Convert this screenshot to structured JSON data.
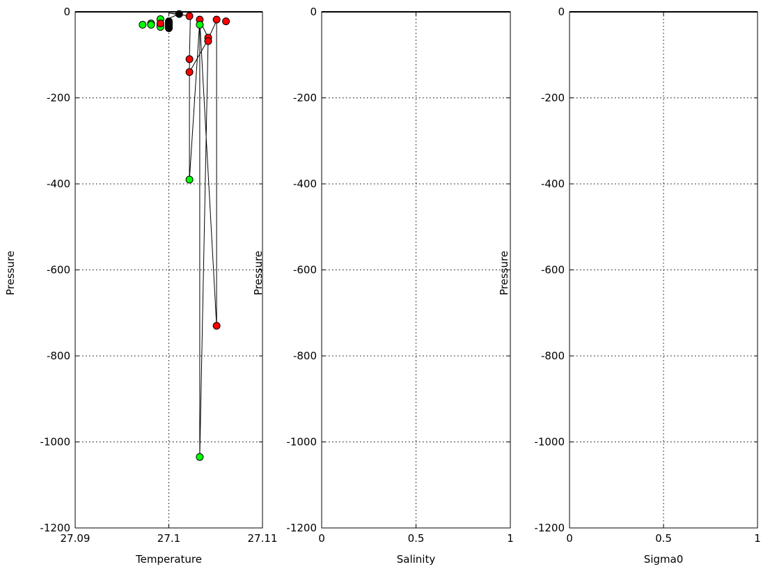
{
  "chart_data": [
    {
      "type": "scatter",
      "title": "",
      "xlabel": "Temperature",
      "ylabel": "Pressure",
      "xlim": [
        27.09,
        27.11
      ],
      "ylim": [
        -1200,
        0
      ],
      "xticks": [
        27.09,
        27.1,
        27.11
      ],
      "xtick_labels": [
        "27.09",
        "27.1",
        "27.11"
      ],
      "yticks": [
        0,
        -200,
        -400,
        -600,
        -800,
        -1000,
        -1200
      ],
      "ytick_labels": [
        "0",
        "-200",
        "-400",
        "-600",
        "-800",
        "-1000",
        "-1200"
      ],
      "grid": true,
      "colors": {
        "red": "#ff0000",
        "green": "#00ff00",
        "black": "#000000",
        "line": "#000000"
      },
      "line": [
        [
          27.1,
          -35
        ],
        [
          27.1,
          -30
        ],
        [
          27.1,
          -25
        ],
        [
          27.1,
          -20
        ],
        [
          27.1,
          -15
        ],
        [
          27.1011,
          -5
        ],
        [
          27.1,
          -3
        ],
        [
          27.1023,
          -10
        ],
        [
          27.1022,
          -110
        ],
        [
          27.1022,
          -140
        ],
        [
          27.1022,
          -390
        ],
        [
          27.1033,
          -20
        ],
        [
          27.1042,
          -60
        ],
        [
          27.1033,
          -1035
        ],
        [
          27.1033,
          -20
        ],
        [
          27.1051,
          -730
        ],
        [
          27.1051,
          -20
        ],
        [
          27.1041,
          -68
        ],
        [
          27.1022,
          -140
        ]
      ],
      "points": [
        {
          "x": 27.0972,
          "y": -30,
          "color": "green"
        },
        {
          "x": 27.0981,
          "y": -27,
          "color": "green"
        },
        {
          "x": 27.0981,
          "y": -30,
          "color": "green"
        },
        {
          "x": 27.0991,
          "y": -17,
          "color": "green"
        },
        {
          "x": 27.0991,
          "y": -30,
          "color": "green"
        },
        {
          "x": 27.0991,
          "y": -35,
          "color": "green"
        },
        {
          "x": 27.0991,
          "y": -27,
          "color": "red"
        },
        {
          "x": 27.1,
          "y": -22,
          "color": "black"
        },
        {
          "x": 27.1,
          "y": -26,
          "color": "black"
        },
        {
          "x": 27.1,
          "y": -30,
          "color": "black"
        },
        {
          "x": 27.1,
          "y": -34,
          "color": "black"
        },
        {
          "x": 27.1,
          "y": -38,
          "color": "black"
        },
        {
          "x": 27.1011,
          "y": -5,
          "color": "black"
        },
        {
          "x": 27.1022,
          "y": -10,
          "color": "red"
        },
        {
          "x": 27.1022,
          "y": -110,
          "color": "red"
        },
        {
          "x": 27.1022,
          "y": -140,
          "color": "red"
        },
        {
          "x": 27.1022,
          "y": -390,
          "color": "green"
        },
        {
          "x": 27.1033,
          "y": -18,
          "color": "red"
        },
        {
          "x": 27.1033,
          "y": -30,
          "color": "green"
        },
        {
          "x": 27.1033,
          "y": -1035,
          "color": "green"
        },
        {
          "x": 27.1042,
          "y": -60,
          "color": "red"
        },
        {
          "x": 27.1042,
          "y": -68,
          "color": "red"
        },
        {
          "x": 27.1051,
          "y": -18,
          "color": "red"
        },
        {
          "x": 27.1051,
          "y": -730,
          "color": "red"
        },
        {
          "x": 27.1061,
          "y": -22,
          "color": "red"
        }
      ]
    },
    {
      "type": "scatter",
      "title": "",
      "xlabel": "Salinity",
      "ylabel": "Pressure",
      "xlim": [
        0,
        1
      ],
      "ylim": [
        -1200,
        0
      ],
      "xticks": [
        0,
        0.5,
        1
      ],
      "xtick_labels": [
        "0",
        "0.5",
        "1"
      ],
      "yticks": [
        0,
        -200,
        -400,
        -600,
        -800,
        -1000,
        -1200
      ],
      "ytick_labels": [
        "0",
        "-200",
        "-400",
        "-600",
        "-800",
        "-1000",
        "-1200"
      ],
      "grid": true,
      "line": [],
      "points": []
    },
    {
      "type": "scatter",
      "title": "",
      "xlabel": "Sigma0",
      "ylabel": "Pressure",
      "xlim": [
        0,
        1
      ],
      "ylim": [
        -1200,
        0
      ],
      "xticks": [
        0,
        0.5,
        1
      ],
      "xtick_labels": [
        "0",
        "0.5",
        "1"
      ],
      "yticks": [
        0,
        -200,
        -400,
        -600,
        -800,
        -1000,
        -1200
      ],
      "ytick_labels": [
        "0",
        "-200",
        "-400",
        "-600",
        "-800",
        "-1000",
        "-1200"
      ],
      "grid": true,
      "line": [],
      "points": []
    }
  ]
}
